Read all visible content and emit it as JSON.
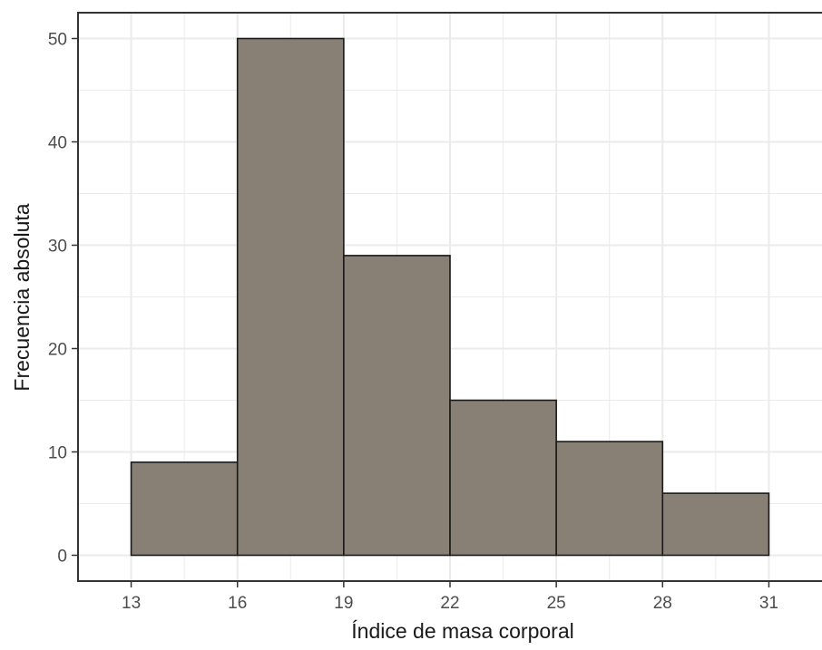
{
  "chart_data": {
    "type": "bar",
    "subtype": "histogram",
    "bins": [
      {
        "start": 13,
        "end": 16,
        "value": 9
      },
      {
        "start": 16,
        "end": 19,
        "value": 50
      },
      {
        "start": 19,
        "end": 22,
        "value": 29
      },
      {
        "start": 22,
        "end": 25,
        "value": 15
      },
      {
        "start": 25,
        "end": 28,
        "value": 11
      },
      {
        "start": 28,
        "end": 31,
        "value": 6
      }
    ],
    "x_ticks": [
      "13",
      "16",
      "19",
      "22",
      "25",
      "28",
      "31"
    ],
    "y_ticks": [
      "0",
      "10",
      "20",
      "30",
      "40",
      "50"
    ],
    "xlabel": "Índice de masa corporal",
    "ylabel": "Frecuencia absoluta",
    "xlim": [
      11.5,
      32.5
    ],
    "ylim": [
      -2.5,
      52.5
    ],
    "grid": true,
    "colors": {
      "bar_fill": "#888075",
      "bar_stroke": "#1a1a1a",
      "grid": "#ebebeb",
      "panel_border": "#333333"
    }
  }
}
